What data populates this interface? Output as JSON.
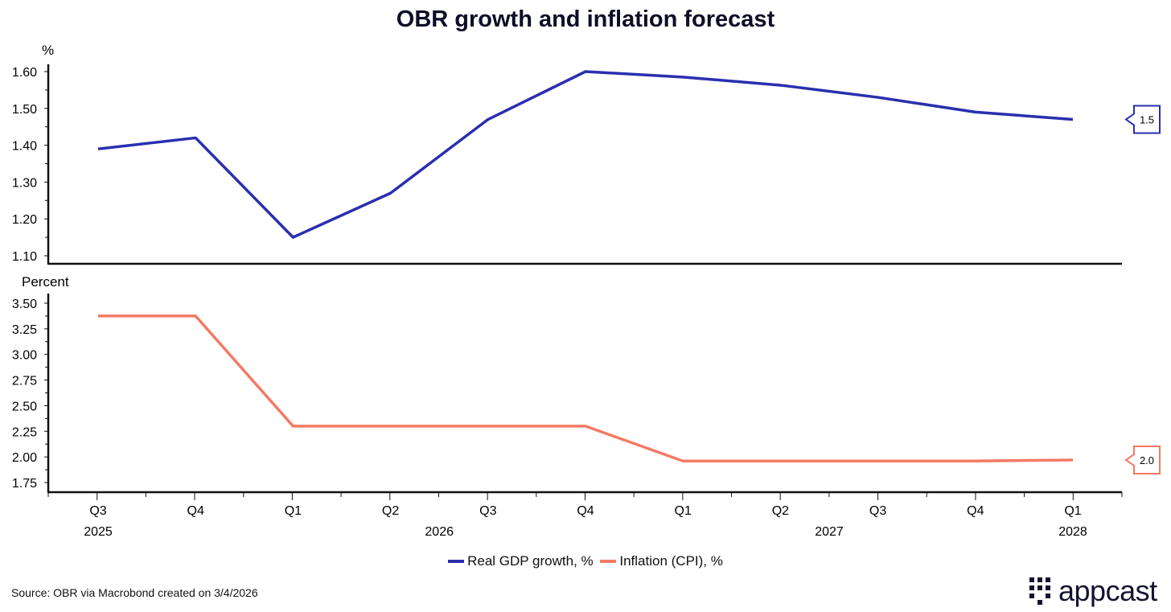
{
  "chart_data": [
    {
      "type": "line",
      "title": "OBR growth and inflation forecast",
      "ylabel": "%",
      "ylim": [
        1.08,
        1.62
      ],
      "yticks": [
        "1.60",
        "1.50",
        "1.40",
        "1.30",
        "1.20",
        "1.10"
      ],
      "ytick_values": [
        1.6,
        1.5,
        1.4,
        1.3,
        1.2,
        1.1
      ],
      "series": [
        {
          "name": "Real GDP growth, %",
          "color": "#2a2fae",
          "values": [
            1.39,
            1.42,
            1.15,
            1.27,
            1.47,
            1.6,
            1.585,
            1.563,
            1.53,
            1.49,
            1.47
          ]
        }
      ],
      "end_label": "1.5"
    },
    {
      "type": "line",
      "ylabel": "Percent",
      "ylim": [
        1.62,
        3.6
      ],
      "yticks": [
        "3.50",
        "3.25",
        "3.00",
        "2.75",
        "2.50",
        "2.25",
        "2.00",
        "1.75"
      ],
      "ytick_values": [
        3.5,
        3.25,
        3.0,
        2.75,
        2.5,
        2.25,
        2.0,
        1.75
      ],
      "series": [
        {
          "name": "Inflation (CPI), %",
          "color": "#f47a64",
          "values": [
            3.375,
            3.375,
            2.3,
            2.3,
            2.3,
            2.3,
            1.96,
            1.96,
            1.96,
            1.96,
            1.97
          ]
        }
      ],
      "end_label": "2.0"
    }
  ],
  "x_quarters": [
    "Q3",
    "Q4",
    "Q1",
    "Q2",
    "Q3",
    "Q4",
    "Q1",
    "Q2",
    "Q3",
    "Q4",
    "Q1"
  ],
  "x_years": [
    {
      "label": "2025",
      "index": 0
    },
    {
      "label": "2026",
      "index": 3.5
    },
    {
      "label": "2027",
      "index": 7.5
    },
    {
      "label": "2028",
      "index": 10
    }
  ],
  "title": "OBR growth and inflation forecast",
  "legend": {
    "gdp": "Real GDP growth, %",
    "cpi": "Inflation (CPI), %"
  },
  "source": "Source: OBR via Macrobond created on 3/4/2026",
  "logo": "appcast"
}
